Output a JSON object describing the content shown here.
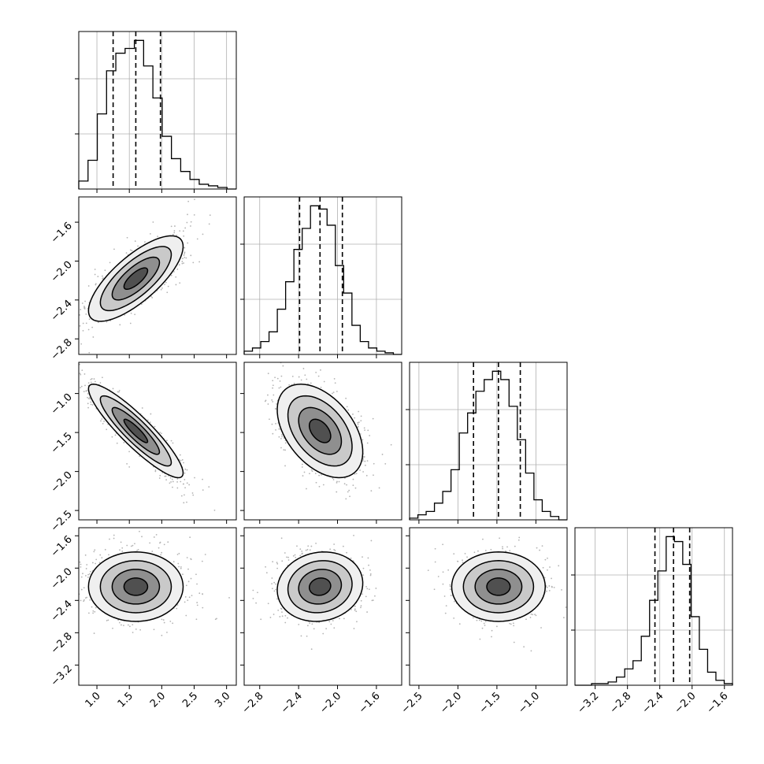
{
  "chart_data": {
    "type": "corner",
    "parameters": [
      {
        "range": [
          0.72,
          3.15
        ],
        "ticks": [
          1.0,
          1.5,
          2.0,
          2.5,
          3.0
        ],
        "tick_labels": [
          "1.0",
          "1.5",
          "2.0",
          "2.5",
          "3.0"
        ],
        "quantiles": [
          1.25,
          1.6,
          1.98
        ],
        "hist": [
          5,
          18,
          47,
          74,
          85,
          88,
          93,
          77,
          57,
          33,
          19,
          11,
          6,
          3,
          2,
          1,
          0
        ]
      },
      {
        "range": [
          -2.96,
          -1.34
        ],
        "ticks": [
          -2.8,
          -2.4,
          -2.0,
          -1.6
        ],
        "tick_labels": [
          "−2.8",
          "−2.4",
          "−2.0",
          "−1.6"
        ],
        "quantiles": [
          -2.39,
          -2.18,
          -1.95
        ],
        "hist": [
          2,
          4,
          8,
          14,
          28,
          45,
          65,
          78,
          92,
          90,
          80,
          55,
          38,
          18,
          8,
          4,
          2,
          1,
          0
        ]
      },
      {
        "range": [
          -2.62,
          -0.6
        ],
        "ticks": [
          -2.5,
          -2.0,
          -1.5,
          -1.0
        ],
        "tick_labels": [
          "−2.5",
          "−2.0",
          "−1.5",
          "−1.0"
        ],
        "quantiles": [
          -1.8,
          -1.48,
          -1.2
        ],
        "hist": [
          1,
          3,
          5,
          10,
          17,
          30,
          52,
          64,
          77,
          84,
          89,
          84,
          68,
          48,
          28,
          12,
          5,
          2,
          0
        ]
      },
      {
        "range": [
          -3.45,
          -1.5
        ],
        "ticks": [
          -3.2,
          -2.8,
          -2.4,
          -2.0,
          -1.6
        ],
        "tick_labels": [
          "−3.2",
          "−2.8",
          "−2.4",
          "−2.0",
          "−1.6"
        ],
        "quantiles": [
          -2.46,
          -2.23,
          -2.03
        ],
        "hist": [
          0,
          0,
          1,
          1,
          2,
          5,
          10,
          15,
          30,
          52,
          70,
          91,
          88,
          74,
          42,
          22,
          8,
          3,
          1
        ]
      }
    ],
    "pairs": [
      {
        "x": 0,
        "y": 1,
        "corr": 0.75
      },
      {
        "x": 0,
        "y": 2,
        "corr": -0.9
      },
      {
        "x": 1,
        "y": 2,
        "corr": -0.45
      },
      {
        "x": 0,
        "y": 3,
        "corr": 0.0
      },
      {
        "x": 1,
        "y": 3,
        "corr": 0.1
      },
      {
        "x": 2,
        "y": 3,
        "corr": 0.0
      }
    ],
    "grid": true,
    "levels_sigma": [
      0.5,
      1.0,
      1.5,
      2.0
    ]
  }
}
